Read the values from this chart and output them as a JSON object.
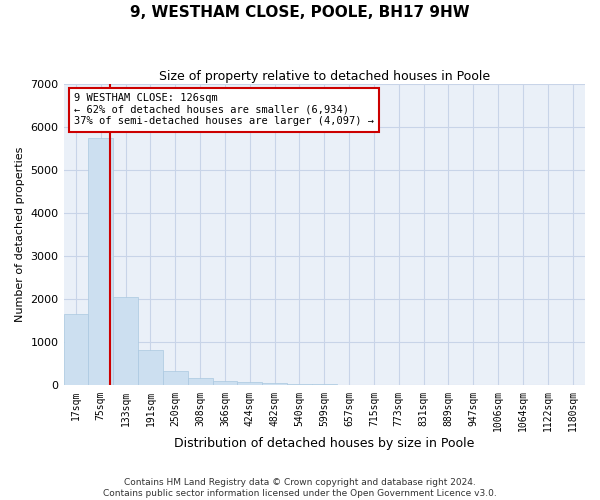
{
  "title": "9, WESTHAM CLOSE, POOLE, BH17 9HW",
  "subtitle": "Size of property relative to detached houses in Poole",
  "xlabel": "Distribution of detached houses by size in Poole",
  "ylabel": "Number of detached properties",
  "footer_line1": "Contains HM Land Registry data © Crown copyright and database right 2024.",
  "footer_line2": "Contains public sector information licensed under the Open Government Licence v3.0.",
  "bar_color": "#ccdff0",
  "bar_edge_color": "#aac8e0",
  "grid_color": "#c8d4e8",
  "background_color": "#eaf0f8",
  "annotation_text": "9 WESTHAM CLOSE: 126sqm\n← 62% of detached houses are smaller (6,934)\n37% of semi-detached houses are larger (4,097) →",
  "vline_color": "#cc0000",
  "annotation_box_edgecolor": "#cc0000",
  "categories": [
    "17sqm",
    "75sqm",
    "133sqm",
    "191sqm",
    "250sqm",
    "308sqm",
    "366sqm",
    "424sqm",
    "482sqm",
    "540sqm",
    "599sqm",
    "657sqm",
    "715sqm",
    "773sqm",
    "831sqm",
    "889sqm",
    "947sqm",
    "1006sqm",
    "1064sqm",
    "1122sqm",
    "1180sqm"
  ],
  "values": [
    1650,
    5750,
    2050,
    820,
    330,
    175,
    110,
    75,
    55,
    40,
    30,
    20,
    10,
    5,
    3,
    2,
    1,
    1,
    0,
    0,
    0
  ],
  "ylim": [
    0,
    7000
  ],
  "yticks": [
    0,
    1000,
    2000,
    3000,
    4000,
    5000,
    6000,
    7000
  ],
  "vline_bar_idx": 1,
  "vline_sqm": 126,
  "bin_start": [
    17,
    75,
    133,
    191,
    250,
    308,
    366,
    424,
    482,
    540,
    599,
    657,
    715,
    773,
    831,
    889,
    947,
    1006,
    1064,
    1122,
    1180
  ]
}
